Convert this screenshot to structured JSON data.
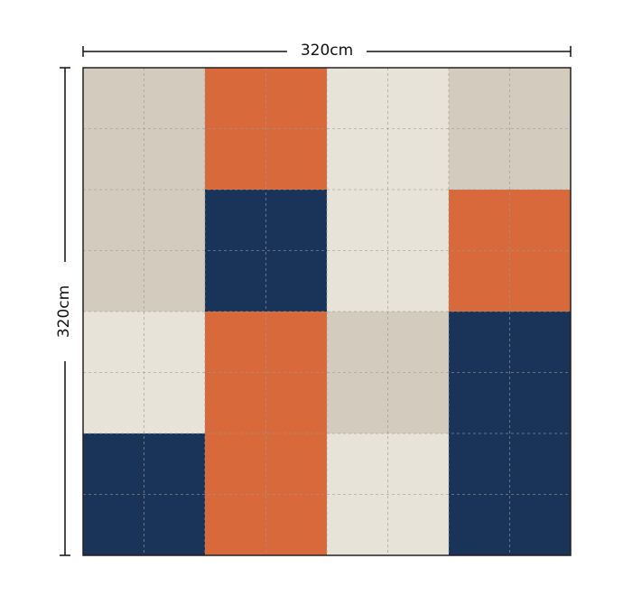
{
  "dimensions": {
    "width": "320cm",
    "height": "320cm"
  },
  "layout": {
    "blocks": [
      [
        "#d4cbbf",
        "#d7693a",
        "#e8e3d8",
        "#d4cbbf"
      ],
      [
        "#d4cbbf",
        "#193359",
        "#e8e3d8",
        "#d7693a"
      ],
      [
        "#e8e3d8",
        "#d7693a",
        "#d4cbbf",
        "#193359"
      ],
      [
        "#193359",
        "#d7693a",
        "#e8e3d8",
        "#193359"
      ]
    ]
  }
}
